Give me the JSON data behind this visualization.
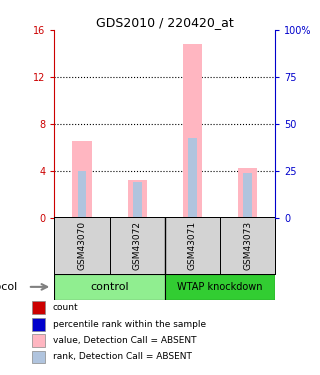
{
  "title": "GDS2010 / 220420_at",
  "samples": [
    "GSM43070",
    "GSM43072",
    "GSM43071",
    "GSM43073"
  ],
  "sample_bg_color": "#D3D3D3",
  "ylim_left": [
    0,
    16
  ],
  "ylim_right": [
    0,
    100
  ],
  "yticks_left": [
    0,
    4,
    8,
    12,
    16
  ],
  "ytick_labels_left": [
    "0",
    "4",
    "8",
    "12",
    "16"
  ],
  "yticks_right": [
    0,
    25,
    50,
    75,
    100
  ],
  "ytick_labels_right": [
    "0",
    "25",
    "50",
    "75",
    "100%"
  ],
  "left_axis_color": "#CC0000",
  "right_axis_color": "#0000CC",
  "bar_width": 0.35,
  "absent_value_color": "#FFB6C1",
  "absent_rank_color": "#B0C4DE",
  "value_absent": [
    6.5,
    3.2,
    14.8,
    4.2
  ],
  "rank_absent": [
    4.0,
    3.0,
    6.8,
    3.8
  ],
  "ctrl_color": "#90EE90",
  "wtap_color": "#32CD32",
  "legend_items": [
    {
      "color": "#CC0000",
      "label": "count"
    },
    {
      "color": "#0000CC",
      "label": "percentile rank within the sample"
    },
    {
      "color": "#FFB6C1",
      "label": "value, Detection Call = ABSENT"
    },
    {
      "color": "#B0C4DE",
      "label": "rank, Detection Call = ABSENT"
    }
  ]
}
